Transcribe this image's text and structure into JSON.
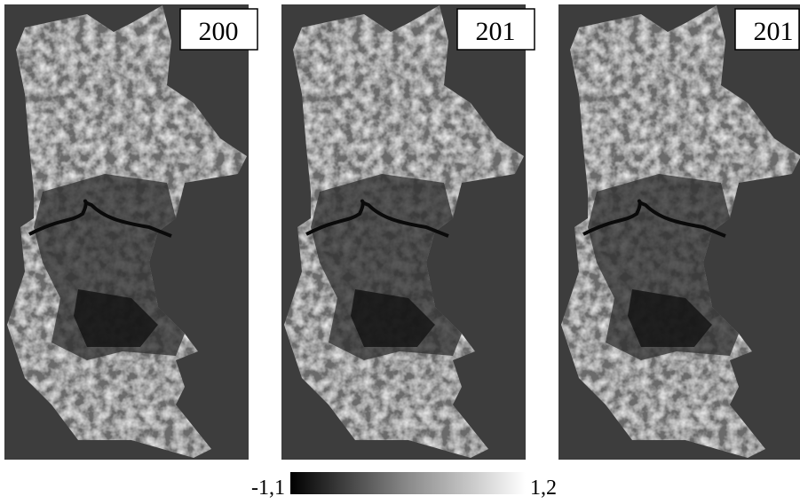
{
  "panels": [
    {
      "label": "200"
    },
    {
      "label": "201"
    },
    {
      "label": "201"
    }
  ],
  "colorbar": {
    "min_label": "-1,1",
    "max_label": "1,2"
  }
}
